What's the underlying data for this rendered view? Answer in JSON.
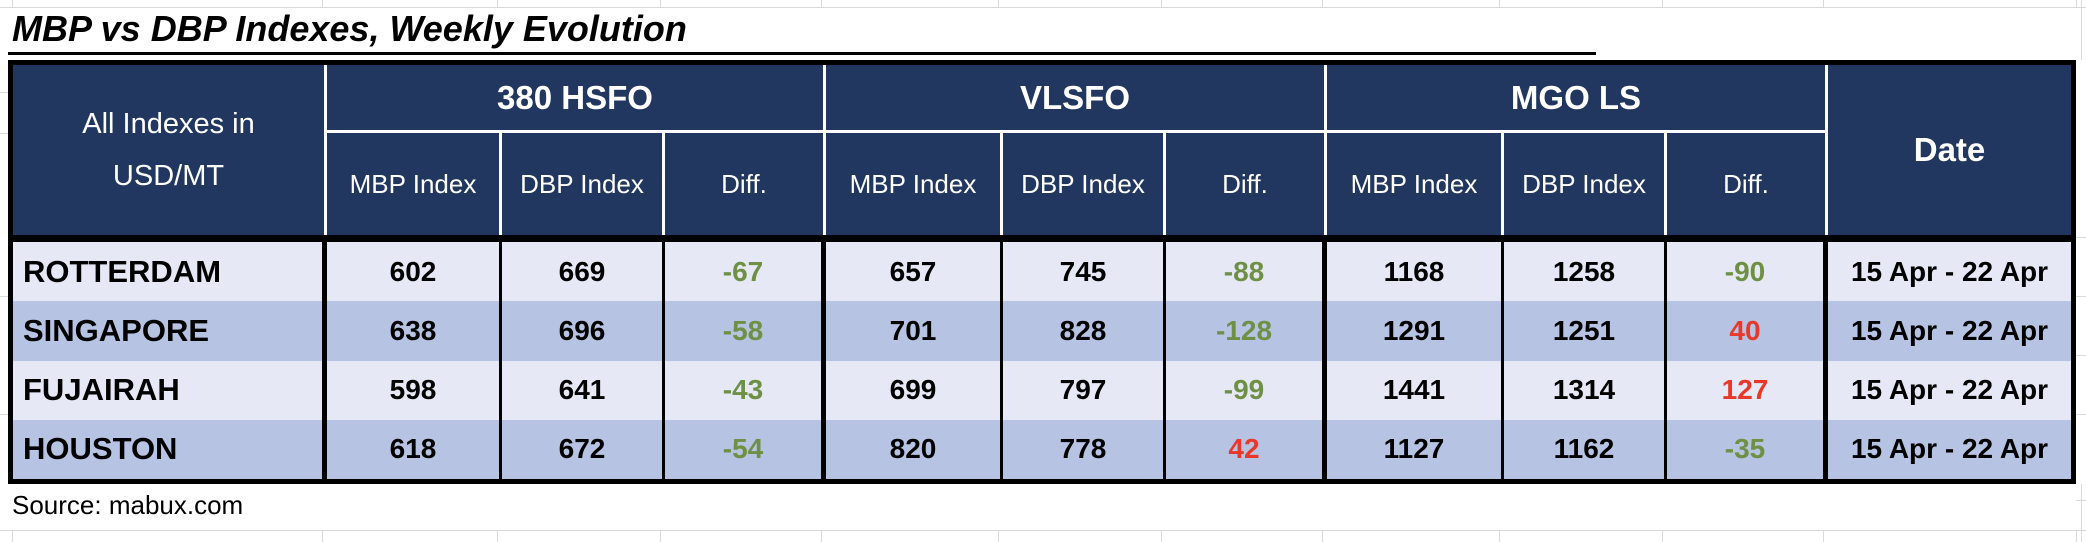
{
  "title": "MBP vs DBP Indexes, Weekly Evolution",
  "source": "Source: mabux.com",
  "table": {
    "corner": {
      "line1": "All Indexes in",
      "line2": "USD/MT"
    },
    "groups": [
      "380 HSFO",
      "VLSFO",
      "MGO LS"
    ],
    "subheaders": [
      "MBP Index",
      "DBP Index",
      "Diff."
    ],
    "date_header": "Date",
    "rows": [
      {
        "city": "ROTTERDAM",
        "values": [
          "602",
          "669",
          "-67",
          "657",
          "745",
          "-88",
          "1168",
          "1258",
          "-90"
        ],
        "diff_colors": {
          "2": "#6E9044",
          "5": "#6E9044",
          "8": "#6E9044"
        },
        "date": "15 Apr - 22 Apr"
      },
      {
        "city": "SINGAPORE",
        "values": [
          "638",
          "696",
          "-58",
          "701",
          "828",
          "-128",
          "1291",
          "1251",
          "40"
        ],
        "diff_colors": {
          "2": "#6E9044",
          "5": "#6E9044",
          "8": "#E93829"
        },
        "date": "15 Apr - 22 Apr"
      },
      {
        "city": "FUJAIRAH",
        "values": [
          "598",
          "641",
          "-43",
          "699",
          "797",
          "-99",
          "1441",
          "1314",
          "127"
        ],
        "diff_colors": {
          "2": "#6E9044",
          "5": "#6E9044",
          "8": "#E93829"
        },
        "date": "15 Apr - 22 Apr"
      },
      {
        "city": "HOUSTON",
        "values": [
          "618",
          "672",
          "-54",
          "820",
          "778",
          "42",
          "1127",
          "1162",
          "-35"
        ],
        "diff_colors": {
          "2": "#6E9044",
          "5": "#E93829",
          "8": "#6E9044"
        },
        "date": "15 Apr - 22 Apr"
      }
    ]
  },
  "colors": {
    "header_bg": "#223760",
    "row_light": "#E6E9F5",
    "row_dark": "#B6C3E2",
    "diff_negative_green": "#6E9044",
    "diff_positive_red": "#E93829",
    "gridline": "#D9D9D9"
  },
  "chart_data": {
    "type": "table",
    "title": "MBP vs DBP Indexes, Weekly Evolution",
    "units": "USD/MT",
    "source": "Source: mabux.com",
    "column_groups": [
      "380 HSFO",
      "VLSFO",
      "MGO LS"
    ],
    "columns": [
      "Port",
      "380 HSFO MBP Index",
      "380 HSFO DBP Index",
      "380 HSFO Diff.",
      "VLSFO MBP Index",
      "VLSFO DBP Index",
      "VLSFO Diff.",
      "MGO LS MBP Index",
      "MGO LS DBP Index",
      "MGO LS Diff.",
      "Date"
    ],
    "rows": [
      [
        "ROTTERDAM",
        602,
        669,
        -67,
        657,
        745,
        -88,
        1168,
        1258,
        -90,
        "15 Apr - 22 Apr"
      ],
      [
        "SINGAPORE",
        638,
        696,
        -58,
        701,
        828,
        -128,
        1291,
        1251,
        40,
        "15 Apr - 22 Apr"
      ],
      [
        "FUJAIRAH",
        598,
        641,
        -43,
        699,
        797,
        -99,
        1441,
        1314,
        127,
        "15 Apr - 22 Apr"
      ],
      [
        "HOUSTON",
        618,
        672,
        -54,
        820,
        778,
        42,
        1127,
        1162,
        -35,
        "15 Apr - 22 Apr"
      ]
    ]
  }
}
